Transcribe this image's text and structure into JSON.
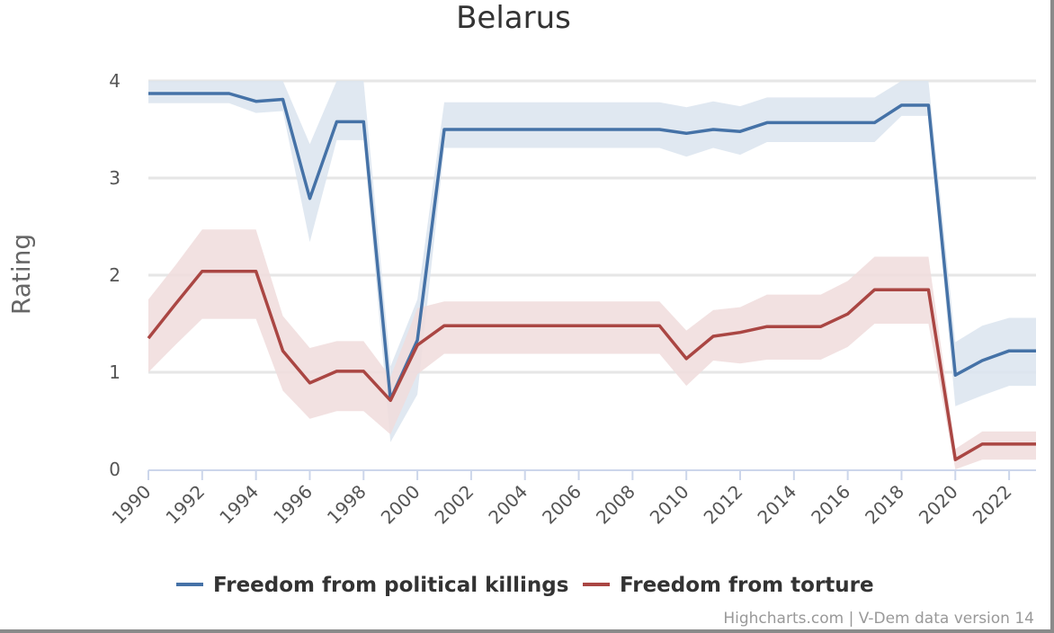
{
  "chart_data": {
    "type": "line",
    "title": "Belarus",
    "ylabel": "Rating",
    "xlabel": "",
    "xlim": [
      1990,
      2023
    ],
    "ylim": [
      0,
      4
    ],
    "yticks": [
      0,
      1,
      2,
      3,
      4
    ],
    "xticks": [
      1990,
      1992,
      1994,
      1996,
      1998,
      2000,
      2002,
      2004,
      2006,
      2008,
      2010,
      2012,
      2014,
      2016,
      2018,
      2020,
      2022
    ],
    "grid": true,
    "legend_position": "bottom-center",
    "x": [
      1990,
      1991,
      1992,
      1993,
      1994,
      1995,
      1996,
      1997,
      1998,
      1999,
      2000,
      2001,
      2002,
      2003,
      2004,
      2005,
      2006,
      2007,
      2008,
      2009,
      2010,
      2011,
      2012,
      2013,
      2014,
      2015,
      2016,
      2017,
      2018,
      2019,
      2020,
      2021,
      2022,
      2023
    ],
    "series": [
      {
        "name": "Freedom from political killings",
        "color": "#4572a7",
        "band_color": "#dbe4ef",
        "values": [
          3.87,
          3.87,
          3.87,
          3.87,
          3.79,
          3.81,
          2.79,
          3.58,
          3.58,
          0.72,
          1.33,
          3.5,
          3.5,
          3.5,
          3.5,
          3.5,
          3.5,
          3.5,
          3.5,
          3.5,
          3.46,
          3.5,
          3.48,
          3.57,
          3.57,
          3.57,
          3.57,
          3.57,
          3.75,
          3.75,
          0.97,
          1.12,
          1.22,
          1.22
        ],
        "upper": [
          4.0,
          4.0,
          4.0,
          4.0,
          4.0,
          4.0,
          3.35,
          4.0,
          4.0,
          1.06,
          1.75,
          3.78,
          3.78,
          3.78,
          3.78,
          3.78,
          3.78,
          3.78,
          3.78,
          3.78,
          3.73,
          3.79,
          3.74,
          3.83,
          3.83,
          3.83,
          3.83,
          3.83,
          4.0,
          4.0,
          1.31,
          1.48,
          1.56,
          1.56
        ],
        "lower": [
          3.77,
          3.77,
          3.77,
          3.77,
          3.67,
          3.69,
          2.34,
          3.39,
          3.39,
          0.28,
          0.77,
          3.31,
          3.31,
          3.31,
          3.31,
          3.31,
          3.31,
          3.31,
          3.31,
          3.31,
          3.22,
          3.31,
          3.24,
          3.37,
          3.37,
          3.37,
          3.37,
          3.37,
          3.64,
          3.64,
          0.65,
          0.76,
          0.86,
          0.86
        ]
      },
      {
        "name": "Freedom from torture",
        "color": "#aa4643",
        "band_color": "#f0dcdc",
        "values": [
          1.35,
          1.7,
          2.04,
          2.04,
          2.04,
          1.22,
          0.89,
          1.01,
          1.01,
          0.71,
          1.28,
          1.48,
          1.48,
          1.48,
          1.48,
          1.48,
          1.48,
          1.48,
          1.48,
          1.48,
          1.14,
          1.37,
          1.41,
          1.47,
          1.47,
          1.47,
          1.6,
          1.85,
          1.85,
          1.85,
          0.1,
          0.26,
          0.26,
          0.26
        ],
        "upper": [
          1.75,
          2.1,
          2.47,
          2.47,
          2.47,
          1.58,
          1.25,
          1.32,
          1.32,
          0.95,
          1.66,
          1.73,
          1.73,
          1.73,
          1.73,
          1.73,
          1.73,
          1.73,
          1.73,
          1.73,
          1.43,
          1.64,
          1.67,
          1.8,
          1.8,
          1.8,
          1.94,
          2.19,
          2.19,
          2.19,
          0.21,
          0.39,
          0.39,
          0.39
        ],
        "lower": [
          1.0,
          1.28,
          1.55,
          1.55,
          1.55,
          0.81,
          0.52,
          0.6,
          0.6,
          0.36,
          0.98,
          1.19,
          1.19,
          1.19,
          1.19,
          1.19,
          1.19,
          1.19,
          1.19,
          1.19,
          0.86,
          1.12,
          1.09,
          1.13,
          1.13,
          1.13,
          1.26,
          1.5,
          1.5,
          1.5,
          0.0,
          0.1,
          0.1,
          0.1
        ]
      }
    ]
  },
  "credits": "Highcharts.com | V-Dem data version 14"
}
